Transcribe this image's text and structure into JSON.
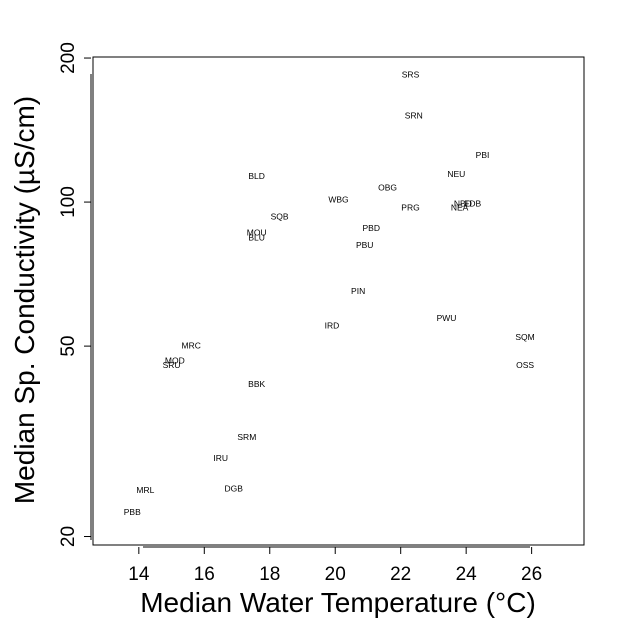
{
  "chart_data": {
    "type": "scatter",
    "xlabel": "Median Water Temperature (°C)",
    "ylabel": "Median Sp. Conductivity (µS/cm)",
    "xlim": [
      12.6,
      27.6
    ],
    "ylim": [
      19.2,
      201
    ],
    "y_scale": "log",
    "grid": false,
    "x_ticks": [
      14,
      16,
      18,
      20,
      22,
      24,
      26
    ],
    "y_ticks": [
      20,
      50,
      100,
      200
    ],
    "points": [
      {
        "label": "SRS",
        "x": 22.3,
        "y": 184
      },
      {
        "label": "SRN",
        "x": 22.4,
        "y": 151
      },
      {
        "label": "PBI",
        "x": 24.5,
        "y": 125
      },
      {
        "label": "NEU",
        "x": 23.7,
        "y": 114
      },
      {
        "label": "BLD",
        "x": 17.6,
        "y": 113
      },
      {
        "label": "OBG",
        "x": 21.6,
        "y": 107
      },
      {
        "label": "WBG",
        "x": 20.1,
        "y": 101
      },
      {
        "label": "NBD",
        "x": 23.9,
        "y": 99
      },
      {
        "label": "FDB",
        "x": 24.2,
        "y": 99
      },
      {
        "label": "NEA",
        "x": 23.8,
        "y": 97
      },
      {
        "label": "PRG",
        "x": 22.3,
        "y": 97
      },
      {
        "label": "SQB",
        "x": 18.3,
        "y": 93
      },
      {
        "label": "PBD",
        "x": 21.1,
        "y": 88
      },
      {
        "label": "MOU",
        "x": 17.6,
        "y": 86
      },
      {
        "label": "BLU",
        "x": 17.6,
        "y": 84
      },
      {
        "label": "PBU",
        "x": 20.9,
        "y": 81
      },
      {
        "label": "PIN",
        "x": 20.7,
        "y": 65
      },
      {
        "label": "PWU",
        "x": 23.4,
        "y": 57
      },
      {
        "label": "IRD",
        "x": 19.9,
        "y": 55
      },
      {
        "label": "SQM",
        "x": 25.8,
        "y": 52
      },
      {
        "label": "MRC",
        "x": 15.6,
        "y": 50
      },
      {
        "label": "MOD",
        "x": 15.1,
        "y": 46.5
      },
      {
        "label": "SRU",
        "x": 15.0,
        "y": 45.5
      },
      {
        "label": "OSS",
        "x": 25.8,
        "y": 45.5
      },
      {
        "label": "BBK",
        "x": 17.6,
        "y": 41.5
      },
      {
        "label": "SRM",
        "x": 17.3,
        "y": 32.2
      },
      {
        "label": "IRU",
        "x": 16.5,
        "y": 29.1
      },
      {
        "label": "DGB",
        "x": 16.9,
        "y": 25.1
      },
      {
        "label": "MRL",
        "x": 14.2,
        "y": 24.9
      },
      {
        "label": "PBB",
        "x": 13.8,
        "y": 22.4
      }
    ]
  }
}
